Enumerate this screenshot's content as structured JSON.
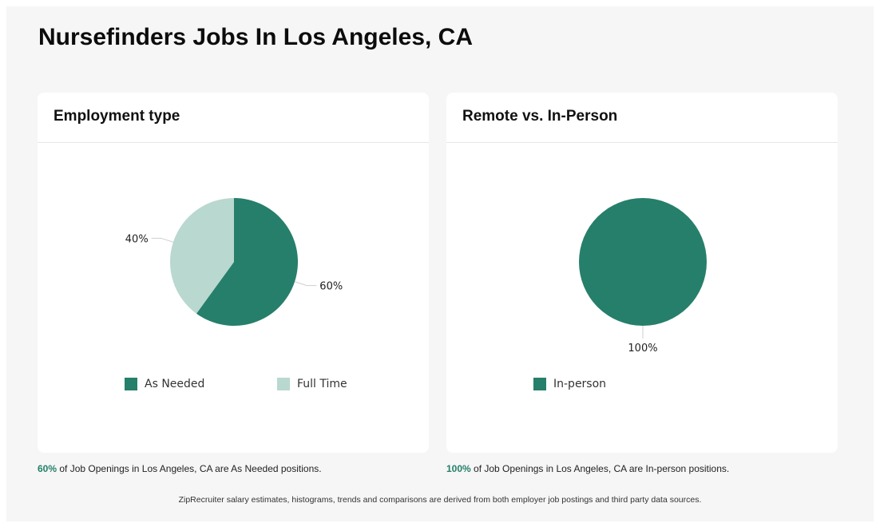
{
  "page": {
    "title": "Nursefinders Jobs In Los Angeles, CA"
  },
  "colors": {
    "primary": "#267f6a",
    "secondary": "#b9d8cf",
    "caption_accent": "#247f68"
  },
  "chart_data": [
    {
      "type": "pie",
      "title": "Employment type",
      "categories": [
        "As Needed",
        "Full Time"
      ],
      "values": [
        60,
        40
      ],
      "value_labels": [
        "60%",
        "40%"
      ],
      "legend": "bottom",
      "caption": {
        "percent": "60%",
        "text": " of Job Openings in Los Angeles, CA are As Needed positions."
      }
    },
    {
      "type": "pie",
      "title": "Remote vs. In-Person",
      "categories": [
        "In-person"
      ],
      "values": [
        100
      ],
      "value_labels": [
        "100%"
      ],
      "legend": "bottom",
      "caption": {
        "percent": "100%",
        "text": " of Job Openings in Los Angeles, CA are In-person positions."
      }
    }
  ],
  "footnote": "ZipRecruiter salary estimates, histograms, trends and comparisons are derived from both employer job postings and third party data sources."
}
